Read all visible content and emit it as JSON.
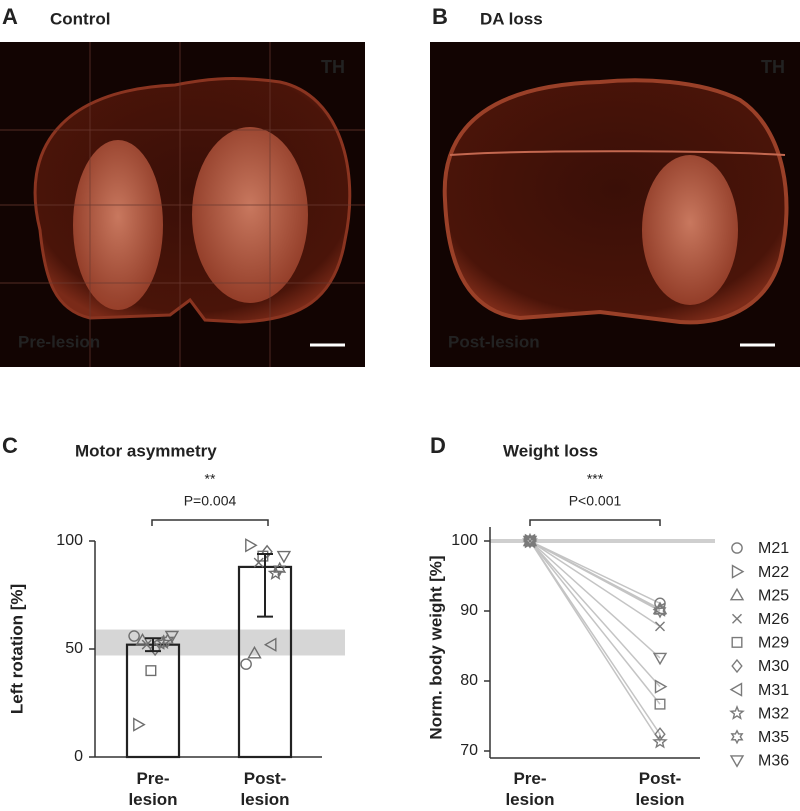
{
  "panels": [
    {
      "letter": "A",
      "title": "Control",
      "stain": "TH",
      "condition": "Pre-lesion"
    },
    {
      "letter": "B",
      "title": "DA loss",
      "stain": "TH",
      "condition": "Post-lesion"
    }
  ],
  "chart_data": [
    {
      "type": "bar",
      "letter": "C",
      "title": "Motor asymmetry",
      "significance": "**",
      "p_value": "P=0.004",
      "ylabel": "Left rotation [%]",
      "categories": [
        "Pre-lesion",
        "Post-lesion"
      ],
      "values": [
        52,
        88
      ],
      "error_low": [
        49,
        65
      ],
      "error_high": [
        55,
        94
      ],
      "reference_band": [
        47,
        59
      ],
      "ylim": [
        0,
        100
      ],
      "yticks": [
        0,
        50,
        100
      ],
      "points": [
        {
          "marker": "circle",
          "values": [
            56,
            43
          ]
        },
        {
          "marker": "triangle-right",
          "values": [
            15,
            98
          ]
        },
        {
          "marker": "triangle-up",
          "values": [
            54,
            48
          ]
        },
        {
          "marker": "cross",
          "values": [
            52,
            90
          ]
        },
        {
          "marker": "square",
          "values": [
            40,
            93
          ]
        },
        {
          "marker": "diamond",
          "values": [
            50,
            95
          ]
        },
        {
          "marker": "triangle-left",
          "values": [
            53,
            52
          ]
        },
        {
          "marker": "star5",
          "values": [
            53,
            85
          ]
        },
        {
          "marker": "star6",
          "values": [
            54,
            87
          ]
        },
        {
          "marker": "triangle-down",
          "values": [
            56,
            93
          ]
        }
      ]
    },
    {
      "type": "line",
      "letter": "D",
      "title": "Weight loss",
      "significance": "***",
      "p_value": "P<0.001",
      "ylabel": "Norm. body weight [%]",
      "categories": [
        "Pre-lesion",
        "Post-lesion"
      ],
      "reference_line": 100,
      "ylim": [
        69,
        102
      ],
      "yticks": [
        70,
        80,
        90,
        100
      ],
      "series": [
        {
          "name": "M21",
          "marker": "circle",
          "color": "#7a7a7a",
          "values": [
            100,
            91.1
          ]
        },
        {
          "name": "M22",
          "marker": "triangle-right",
          "color": "#7a7a7a",
          "values": [
            100,
            79.2
          ]
        },
        {
          "name": "M25",
          "marker": "triangle-up",
          "color": "#7a7a7a",
          "values": [
            100,
            90.3
          ]
        },
        {
          "name": "M26",
          "marker": "cross",
          "color": "#7a7a7a",
          "values": [
            100,
            87.8
          ]
        },
        {
          "name": "M29",
          "marker": "square",
          "color": "#7a7a7a",
          "values": [
            100,
            76.7
          ]
        },
        {
          "name": "M30",
          "marker": "diamond",
          "color": "#7a7a7a",
          "values": [
            100,
            72.4
          ]
        },
        {
          "name": "M31",
          "marker": "triangle-left",
          "color": "#7a7a7a",
          "values": [
            100,
            90.2
          ]
        },
        {
          "name": "M32",
          "marker": "star5",
          "color": "#7a7a7a",
          "values": [
            100,
            71.3
          ]
        },
        {
          "name": "M35",
          "marker": "star6",
          "color": "#7a7a7a",
          "values": [
            100,
            90.0
          ]
        },
        {
          "name": "M36",
          "marker": "triangle-down",
          "color": "#7a7a7a",
          "values": [
            100,
            83.3
          ]
        }
      ]
    }
  ]
}
